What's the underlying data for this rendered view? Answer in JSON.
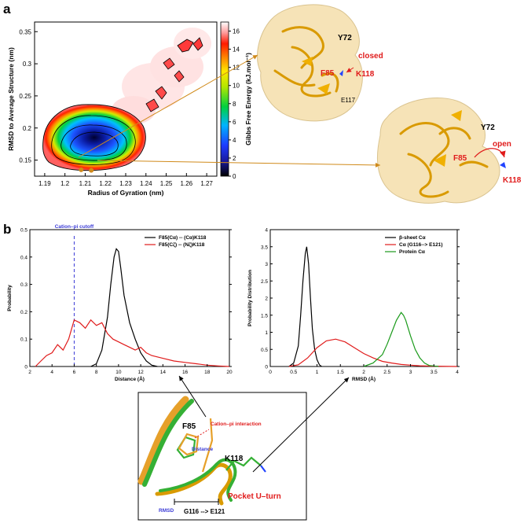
{
  "panel_a_label": "a",
  "panel_b_label": "b",
  "chart_data": [
    {
      "type": "heatmap",
      "xlabel": "Radius of Gyration (nm)",
      "ylabel": "RMSD to Average Structure (nm)",
      "xticks": [
        "1.19",
        "1.2",
        "1.21",
        "1.22",
        "1.23",
        "1.24",
        "1.25",
        "1.26",
        "1.27"
      ],
      "yticks": [
        "0.15",
        "0.2",
        "0.25",
        "0.3",
        "0.35"
      ],
      "xlim": [
        1.185,
        1.275
      ],
      "ylim": [
        0.125,
        0.365
      ],
      "colorbar": {
        "label": "Gibbs Free Energy (kJ.mol⁻¹)",
        "ticks": [
          "0",
          "2",
          "4",
          "6",
          "8",
          "10",
          "12",
          "14",
          "16"
        ],
        "range": [
          0,
          17
        ]
      },
      "minima": [
        {
          "x": 1.208,
          "y": 0.135
        },
        {
          "x": 1.213,
          "y": 0.134
        }
      ]
    },
    {
      "type": "line",
      "xlabel": "Distance (Å)",
      "ylabel": "Probability",
      "xlim": [
        2,
        20
      ],
      "ylim": [
        0,
        0.5
      ],
      "xticks": [
        "2",
        "4",
        "6",
        "8",
        "10",
        "12",
        "14",
        "16",
        "18",
        "20"
      ],
      "yticks": [
        "0",
        "0.1",
        "0.2",
        "0.3",
        "0.4",
        "0.5"
      ],
      "cutoff": {
        "x": 6,
        "label": "Cation–pi cutoff"
      },
      "series": [
        {
          "name": "F85(Cα) -- (Cα)K118",
          "color": "#000000",
          "x": [
            7.5,
            8.0,
            8.5,
            9.0,
            9.3,
            9.6,
            9.8,
            10.0,
            10.2,
            10.5,
            11.0,
            11.5,
            12.0,
            12.5,
            13.0,
            13.5
          ],
          "y": [
            0.0,
            0.01,
            0.06,
            0.18,
            0.3,
            0.4,
            0.43,
            0.42,
            0.36,
            0.26,
            0.16,
            0.1,
            0.05,
            0.02,
            0.005,
            0.0
          ]
        },
        {
          "name": "F85(Cζ) -- (Nζ)K118",
          "color": "#e01b1b",
          "x": [
            2.5,
            3.0,
            3.5,
            4.0,
            4.5,
            5.0,
            5.5,
            6.0,
            6.5,
            7.0,
            7.5,
            8.0,
            8.5,
            9.0,
            9.5,
            10.0,
            10.5,
            11.0,
            11.5,
            12.0,
            12.5,
            13.0,
            14.0,
            15.0,
            16.0,
            17.0,
            18.0,
            19.0,
            20.0
          ],
          "y": [
            0.0,
            0.02,
            0.04,
            0.05,
            0.08,
            0.06,
            0.1,
            0.17,
            0.16,
            0.14,
            0.17,
            0.15,
            0.16,
            0.12,
            0.1,
            0.09,
            0.08,
            0.07,
            0.06,
            0.07,
            0.05,
            0.04,
            0.03,
            0.02,
            0.015,
            0.01,
            0.005,
            0.002,
            0.0
          ]
        }
      ]
    },
    {
      "type": "line",
      "xlabel": "RMSD (Å)",
      "ylabel": "Probability Distribution",
      "xlim": [
        0,
        4
      ],
      "ylim": [
        0,
        4
      ],
      "xticks": [
        "0",
        "0.5",
        "1",
        "1.5",
        "2",
        "2.5",
        "3",
        "3.5",
        "4"
      ],
      "yticks": [
        "0",
        "0.5",
        "1",
        "1.5",
        "2",
        "2.5",
        "3",
        "3.5",
        "4"
      ],
      "series": [
        {
          "name": "β-sheet Cα",
          "color": "#000000",
          "x": [
            0.4,
            0.5,
            0.6,
            0.65,
            0.7,
            0.75,
            0.78,
            0.82,
            0.86,
            0.9,
            0.95,
            1.0,
            1.05,
            1.1
          ],
          "y": [
            0.0,
            0.1,
            0.6,
            1.5,
            2.5,
            3.3,
            3.5,
            3.0,
            2.0,
            1.1,
            0.5,
            0.2,
            0.05,
            0.0
          ]
        },
        {
          "name": "Cα (G116--> E121)",
          "color": "#e01b1b",
          "x": [
            0.4,
            0.6,
            0.8,
            1.0,
            1.2,
            1.4,
            1.6,
            1.8,
            2.0,
            2.2,
            2.4,
            2.6,
            2.8,
            3.0,
            3.2,
            3.5,
            4.0
          ],
          "y": [
            0.0,
            0.05,
            0.25,
            0.55,
            0.75,
            0.8,
            0.72,
            0.55,
            0.38,
            0.25,
            0.15,
            0.1,
            0.06,
            0.04,
            0.02,
            0.01,
            0.0
          ]
        },
        {
          "name": "Protein Cα",
          "color": "#1a9a1a",
          "x": [
            2.0,
            2.2,
            2.4,
            2.5,
            2.6,
            2.7,
            2.8,
            2.85,
            2.9,
            3.0,
            3.1,
            3.2,
            3.3,
            3.4,
            3.6
          ],
          "y": [
            0.0,
            0.1,
            0.35,
            0.65,
            1.0,
            1.35,
            1.58,
            1.5,
            1.35,
            0.9,
            0.5,
            0.25,
            0.1,
            0.03,
            0.0
          ]
        }
      ]
    }
  ],
  "structures": {
    "closed": {
      "y72": "Y72",
      "state": "closed",
      "f85": "F85",
      "k118": "K118",
      "e117": "E117"
    },
    "open": {
      "y72": "Y72",
      "state": "open",
      "f85": "F85",
      "k118": "K118"
    }
  },
  "inset": {
    "f85": "F85",
    "interaction": "Cation–pi interaction",
    "distance": "Distance",
    "k118": "K118",
    "uturn": "Pocket U–turn",
    "rmsd": "RMSD",
    "range": "G116 --> E121"
  },
  "colors": {
    "red": "#e01b1b",
    "green": "#1a9a1a",
    "orange": "#d08a1a",
    "cutoff": "#3b3bd6"
  }
}
